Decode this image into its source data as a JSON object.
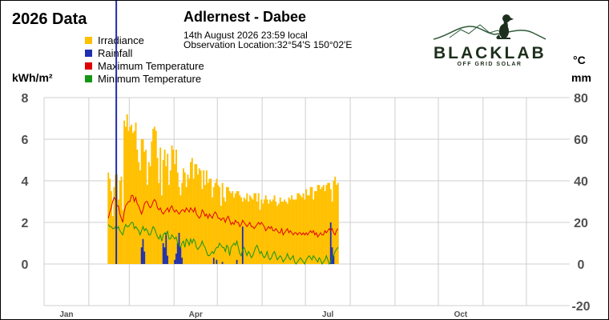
{
  "page": {
    "title": "2026 Data"
  },
  "station": {
    "name": "Adlernest - Dabee",
    "timestamp": "14th August 2026  23:59 local",
    "location": "Observation Location:32°54'S 150°02'E"
  },
  "logo": {
    "wordmark": "BLACKLAB",
    "tagline": "OFF GRID SOLAR",
    "icon": "dog-on-hill-icon"
  },
  "units": {
    "left": "kWh/m²",
    "right_top": "°C",
    "right_bottom": "mm"
  },
  "colors": {
    "irradiance": "#ffc000",
    "rainfall": "#1f2fb0",
    "max_temp": "#e00000",
    "min_temp": "#159615",
    "grid": "#cfcfcf",
    "axis_text": "#505050",
    "logo": "#1d2f1d"
  },
  "chart_data": {
    "type": "bar",
    "x_axis": {
      "type": "date",
      "min": "2026-01-01",
      "max": "2026-12-31",
      "tick_labels": [
        "Jan",
        "Apr",
        "Jul",
        "Oct"
      ]
    },
    "y_left": {
      "label": "kWh/m²",
      "min": 0,
      "max": 8,
      "ticks": [
        0,
        2,
        4,
        6,
        8
      ]
    },
    "y_right": {
      "label": "°C / mm",
      "min": -20,
      "max": 80,
      "ticks": [
        -20,
        0,
        20,
        40,
        60,
        80
      ]
    },
    "grid": true,
    "legend": {
      "position": "top-left",
      "entries": [
        "Irradiance",
        "Rainfall",
        "Maximum Temperature",
        "Minimum Temperature"
      ]
    },
    "series": [
      {
        "name": "Irradiance",
        "type": "bar",
        "axis": "left",
        "color": "#ffc000",
        "start": "2026-02-14",
        "values": [
          4.4,
          4.1,
          3.5,
          2.3,
          3.7,
          4.3,
          4.3,
          3.1,
          4.0,
          4.2,
          2.6,
          6.9,
          6.6,
          7.2,
          6.4,
          6.6,
          6.7,
          6.3,
          6.4,
          6.8,
          5.5,
          4.9,
          4.5,
          6.0,
          6.0,
          5.4,
          5.5,
          3.8,
          4.9,
          4.7,
          5.9,
          6.5,
          6.6,
          6.4,
          5.1,
          3.9,
          5.6,
          3.3,
          5.0,
          5.5,
          4.7,
          5.3,
          3.8,
          4.5,
          5.7,
          5.5,
          4.8,
          5.5,
          4.4,
          3.7,
          3.3,
          3.9,
          4.6,
          4.4,
          3.7,
          4.3,
          4.1,
          4.9,
          5.1,
          4.1,
          4.8,
          4.8,
          4.3,
          4.6,
          4.5,
          3.6,
          4.5,
          3.8,
          4.5,
          3.9,
          4.1,
          4.1,
          3.2,
          3.7,
          3.9,
          4.1,
          3.8,
          3.7,
          2.8,
          3.9,
          3.2,
          3.0,
          3.7,
          3.7,
          3.5,
          3.4,
          3.5,
          3.2,
          3.4,
          3.5,
          3.5,
          3.3,
          3.2,
          3.0,
          3.2,
          3.1,
          3.4,
          3.0,
          3.3,
          3.2,
          3.1,
          3.4,
          3.4,
          3.0,
          3.4,
          2.6,
          3.1,
          2.9,
          3.1,
          3.3,
          3.1,
          2.9,
          3.1,
          3.0,
          3.1,
          3.3,
          3.0,
          2.8,
          2.9,
          3.2,
          3.0,
          3.0,
          3.1,
          3.0,
          2.9,
          3.2,
          3.1,
          3.3,
          3.1,
          3.1,
          3.1,
          3.4,
          3.4,
          3.3,
          3.2,
          3.4,
          3.1,
          3.6,
          3.3,
          3.3,
          3.7,
          3.7,
          3.1,
          3.5,
          3.5,
          3.8,
          3.8,
          3.6,
          3.7,
          3.8,
          3.5,
          3.8,
          3.9,
          3.9,
          3.6,
          3.0,
          4.0,
          4.2,
          3.8,
          3.9
        ]
      },
      {
        "name": "Rainfall",
        "type": "bar",
        "axis": "right",
        "color": "#1f2fb0",
        "start": "2026-02-14",
        "values": [
          0,
          0,
          0,
          0,
          0,
          0,
          0,
          0,
          0,
          0,
          0,
          0,
          0,
          0,
          0,
          0,
          0,
          0,
          0,
          0,
          0,
          0,
          0,
          8,
          12,
          6,
          0,
          0,
          0,
          0,
          0,
          0,
          0,
          0,
          0,
          0,
          0,
          0,
          10,
          8,
          15,
          4,
          0,
          0,
          0,
          0,
          2,
          5,
          10,
          15,
          8,
          3,
          0,
          0,
          0,
          0,
          0,
          0,
          0,
          0,
          0,
          0,
          0,
          0,
          0,
          0,
          0,
          0,
          0,
          0,
          0,
          0,
          0,
          3,
          0,
          2,
          0,
          0,
          0,
          1,
          0,
          0,
          0,
          0,
          0,
          0,
          0,
          0,
          0,
          2,
          0,
          0,
          0,
          18,
          0,
          0,
          0,
          0,
          0,
          0,
          0,
          0,
          0,
          0,
          0,
          0,
          0,
          0,
          0,
          0,
          0,
          0,
          0,
          0,
          0,
          0,
          0,
          0,
          0,
          0,
          0,
          0,
          0,
          0,
          0,
          0,
          0,
          0,
          0,
          0,
          0,
          0,
          0,
          0,
          0,
          0,
          0,
          0,
          0,
          0,
          0,
          0,
          0,
          0,
          0,
          0,
          0,
          0,
          0,
          0,
          0,
          0,
          0,
          0,
          20,
          8,
          4,
          0,
          0,
          0
        ]
      },
      {
        "name": "Maximum Temperature",
        "type": "line",
        "axis": "right",
        "color": "#e00000",
        "start": "2026-02-14",
        "values": [
          22,
          25,
          27,
          30,
          32,
          31,
          28,
          28,
          24,
          22,
          20,
          25,
          28,
          29,
          30,
          30,
          33,
          33,
          30,
          32,
          29,
          28,
          26,
          24,
          26,
          29,
          30,
          30,
          28,
          27,
          28,
          30,
          31,
          30,
          27,
          26,
          27,
          25,
          24,
          25,
          26,
          27,
          25,
          27,
          28,
          26,
          25,
          26,
          25,
          24,
          25,
          26,
          26,
          25,
          27,
          26,
          25,
          27,
          26,
          25,
          27,
          24,
          23,
          22,
          23,
          26,
          25,
          23,
          24,
          22,
          24,
          23,
          22,
          24,
          25,
          24,
          22,
          22,
          21,
          22,
          22,
          20,
          22,
          23,
          21,
          19,
          20,
          19,
          21,
          20,
          20,
          18,
          19,
          21,
          20,
          19,
          18,
          19,
          20,
          18,
          18,
          17,
          18,
          19,
          20,
          19,
          20,
          19,
          18,
          16,
          17,
          18,
          17,
          18,
          16,
          16,
          17,
          16,
          15,
          15,
          17,
          14,
          15,
          16,
          17,
          15,
          16,
          15,
          14,
          15,
          15,
          14,
          15,
          15,
          14,
          15,
          14,
          15,
          14,
          15,
          16,
          15,
          16,
          14,
          15,
          13,
          14,
          15,
          14,
          14,
          16,
          15,
          16,
          17,
          16,
          17,
          15,
          14,
          16,
          17
        ]
      },
      {
        "name": "Minimum Temperature",
        "type": "line",
        "axis": "right",
        "color": "#159615",
        "start": "2026-02-14",
        "values": [
          19,
          18,
          18,
          17,
          17,
          18,
          17,
          18,
          16,
          15,
          14,
          17,
          19,
          18,
          18,
          19,
          20,
          20,
          17,
          18,
          17,
          16,
          14,
          16,
          18,
          16,
          17,
          16,
          14,
          14,
          16,
          18,
          17,
          15,
          13,
          12,
          14,
          11,
          14,
          15,
          14,
          16,
          12,
          12,
          14,
          13,
          12,
          13,
          10,
          9,
          8,
          10,
          11,
          8,
          12,
          11,
          9,
          12,
          10,
          12,
          11,
          8,
          7,
          8,
          9,
          11,
          9,
          8,
          6,
          4,
          4,
          5,
          6,
          5,
          7,
          8,
          8,
          10,
          9,
          8,
          8,
          6,
          9,
          8,
          4,
          8,
          9,
          10,
          9,
          11,
          8,
          5,
          4,
          7,
          8,
          6,
          4,
          6,
          5,
          3,
          4,
          6,
          8,
          9,
          7,
          5,
          6,
          4,
          3,
          4,
          6,
          3,
          2,
          3,
          5,
          6,
          4,
          2,
          3,
          4,
          3,
          1,
          2,
          3,
          5,
          3,
          2,
          3,
          4,
          1,
          0,
          1,
          2,
          3,
          2,
          1,
          0,
          2,
          3,
          4,
          3,
          2,
          4,
          3,
          2,
          1,
          3,
          2,
          0,
          1,
          2,
          4,
          2,
          0,
          1,
          3,
          4,
          6,
          7,
          8
        ]
      }
    ],
    "markers": [
      {
        "date": "2026-02-20",
        "color": "#1f2fb0"
      }
    ]
  }
}
